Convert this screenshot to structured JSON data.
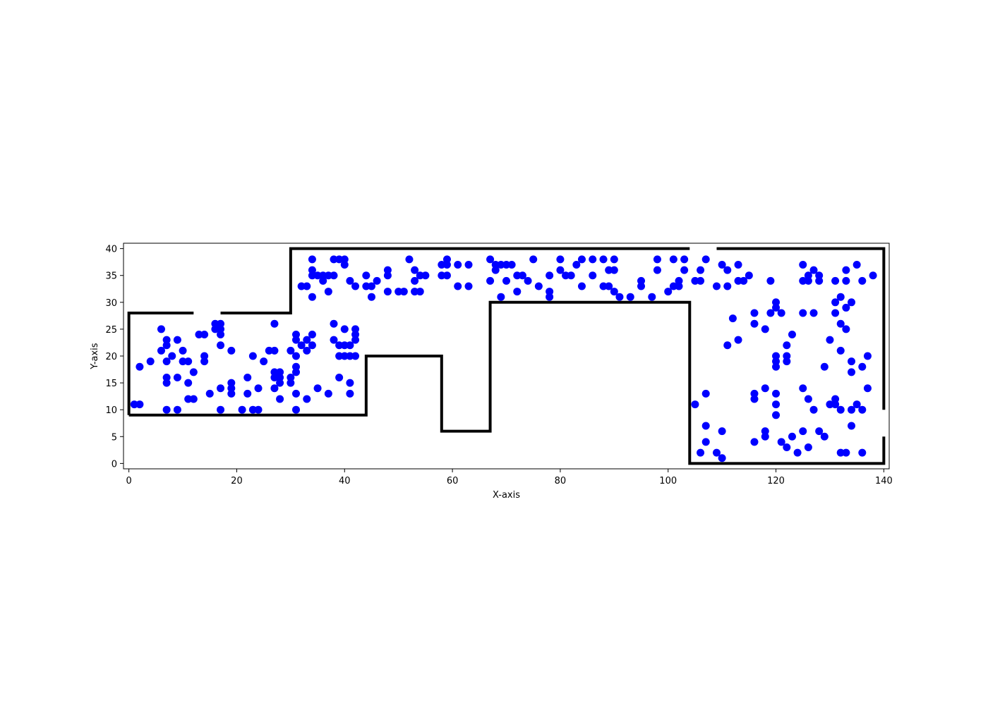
{
  "chart_data": {
    "type": "scatter",
    "title": "",
    "xlabel": "X-axis",
    "ylabel": "Y-axis",
    "xlim": [
      -1,
      141
    ],
    "ylim": [
      -1,
      41
    ],
    "xticks": [
      0,
      20,
      40,
      60,
      80,
      100,
      120,
      140
    ],
    "yticks": [
      0,
      5,
      10,
      15,
      20,
      25,
      30,
      35,
      40
    ],
    "grid": false,
    "colors": {
      "points": "#0000ff",
      "walls": "#000000",
      "axes": "#000000"
    },
    "walls": [
      [
        [
          0,
          9
        ],
        [
          0,
          28
        ],
        [
          12,
          28
        ]
      ],
      [
        [
          17,
          28
        ],
        [
          30,
          28
        ],
        [
          30,
          40
        ],
        [
          104,
          40
        ]
      ],
      [
        [
          109,
          40
        ],
        [
          140,
          40
        ],
        [
          140,
          10
        ]
      ],
      [
        [
          140,
          5
        ],
        [
          140,
          0
        ],
        [
          104,
          0
        ],
        [
          104,
          30
        ],
        [
          67,
          30
        ],
        [
          67,
          6
        ],
        [
          58,
          6
        ],
        [
          58,
          20
        ],
        [
          44,
          20
        ],
        [
          44,
          9
        ],
        [
          0,
          9
        ]
      ]
    ],
    "points": [
      [
        1,
        11
      ],
      [
        2,
        11
      ],
      [
        2,
        18
      ],
      [
        4,
        19
      ],
      [
        6,
        25
      ],
      [
        6,
        21
      ],
      [
        7,
        23
      ],
      [
        7,
        22
      ],
      [
        7,
        19
      ],
      [
        7,
        16
      ],
      [
        7,
        15
      ],
      [
        7,
        10
      ],
      [
        8,
        20
      ],
      [
        9,
        23
      ],
      [
        9,
        16
      ],
      [
        9,
        10
      ],
      [
        10,
        21
      ],
      [
        10,
        19
      ],
      [
        11,
        19
      ],
      [
        11,
        15
      ],
      [
        11,
        12
      ],
      [
        12,
        17
      ],
      [
        12,
        12
      ],
      [
        13,
        24
      ],
      [
        14,
        24
      ],
      [
        14,
        20
      ],
      [
        14,
        19
      ],
      [
        15,
        13
      ],
      [
        16,
        26
      ],
      [
        16,
        25
      ],
      [
        17,
        26
      ],
      [
        17,
        25
      ],
      [
        17,
        24
      ],
      [
        17,
        22
      ],
      [
        17,
        14
      ],
      [
        17,
        10
      ],
      [
        19,
        21
      ],
      [
        19,
        15
      ],
      [
        19,
        14
      ],
      [
        19,
        13
      ],
      [
        21,
        10
      ],
      [
        22,
        16
      ],
      [
        22,
        13
      ],
      [
        23,
        20
      ],
      [
        23,
        10
      ],
      [
        24,
        14
      ],
      [
        24,
        10
      ],
      [
        25,
        19
      ],
      [
        26,
        21
      ],
      [
        27,
        26
      ],
      [
        27,
        21
      ],
      [
        27,
        17
      ],
      [
        27,
        16
      ],
      [
        27,
        14
      ],
      [
        28,
        17
      ],
      [
        28,
        16
      ],
      [
        28,
        15
      ],
      [
        28,
        12
      ],
      [
        30,
        21
      ],
      [
        30,
        16
      ],
      [
        30,
        15
      ],
      [
        31,
        24
      ],
      [
        31,
        23
      ],
      [
        31,
        20
      ],
      [
        31,
        18
      ],
      [
        31,
        17
      ],
      [
        31,
        13
      ],
      [
        31,
        10
      ],
      [
        32,
        22
      ],
      [
        33,
        23
      ],
      [
        33,
        21
      ],
      [
        33,
        12
      ],
      [
        34,
        24
      ],
      [
        34,
        22
      ],
      [
        35,
        14
      ],
      [
        37,
        13
      ],
      [
        38,
        26
      ],
      [
        38,
        23
      ],
      [
        39,
        22
      ],
      [
        39,
        20
      ],
      [
        39,
        16
      ],
      [
        40,
        25
      ],
      [
        40,
        22
      ],
      [
        40,
        20
      ],
      [
        41,
        22
      ],
      [
        41,
        20
      ],
      [
        41,
        15
      ],
      [
        41,
        13
      ],
      [
        42,
        25
      ],
      [
        42,
        24
      ],
      [
        42,
        23
      ],
      [
        42,
        20
      ],
      [
        32,
        33
      ],
      [
        33,
        33
      ],
      [
        34,
        38
      ],
      [
        34,
        36
      ],
      [
        34,
        35
      ],
      [
        34,
        31
      ],
      [
        35,
        35
      ],
      [
        36,
        35
      ],
      [
        36,
        34
      ],
      [
        37,
        35
      ],
      [
        37,
        32
      ],
      [
        38,
        38
      ],
      [
        38,
        35
      ],
      [
        39,
        38
      ],
      [
        40,
        38
      ],
      [
        40,
        37
      ],
      [
        41,
        34
      ],
      [
        42,
        33
      ],
      [
        44,
        35
      ],
      [
        44,
        33
      ],
      [
        45,
        33
      ],
      [
        45,
        31
      ],
      [
        46,
        34
      ],
      [
        48,
        36
      ],
      [
        48,
        35
      ],
      [
        48,
        32
      ],
      [
        50,
        32
      ],
      [
        51,
        32
      ],
      [
        52,
        38
      ],
      [
        53,
        36
      ],
      [
        53,
        34
      ],
      [
        53,
        32
      ],
      [
        54,
        35
      ],
      [
        54,
        32
      ],
      [
        55,
        35
      ],
      [
        58,
        37
      ],
      [
        58,
        35
      ],
      [
        59,
        38
      ],
      [
        59,
        37
      ],
      [
        59,
        35
      ],
      [
        61,
        37
      ],
      [
        61,
        33
      ],
      [
        63,
        37
      ],
      [
        63,
        33
      ],
      [
        67,
        38
      ],
      [
        67,
        34
      ],
      [
        68,
        37
      ],
      [
        68,
        36
      ],
      [
        69,
        37
      ],
      [
        69,
        31
      ],
      [
        70,
        37
      ],
      [
        70,
        34
      ],
      [
        71,
        37
      ],
      [
        72,
        35
      ],
      [
        72,
        32
      ],
      [
        73,
        35
      ],
      [
        74,
        34
      ],
      [
        75,
        38
      ],
      [
        76,
        33
      ],
      [
        78,
        35
      ],
      [
        78,
        32
      ],
      [
        78,
        31
      ],
      [
        80,
        38
      ],
      [
        80,
        36
      ],
      [
        81,
        35
      ],
      [
        82,
        35
      ],
      [
        83,
        37
      ],
      [
        84,
        38
      ],
      [
        84,
        33
      ],
      [
        86,
        38
      ],
      [
        86,
        35
      ],
      [
        88,
        38
      ],
      [
        88,
        33
      ],
      [
        89,
        36
      ],
      [
        89,
        33
      ],
      [
        90,
        38
      ],
      [
        90,
        36
      ],
      [
        90,
        32
      ],
      [
        91,
        31
      ],
      [
        93,
        31
      ],
      [
        95,
        34
      ],
      [
        95,
        33
      ],
      [
        97,
        31
      ],
      [
        98,
        38
      ],
      [
        98,
        36
      ],
      [
        100,
        32
      ],
      [
        101,
        38
      ],
      [
        101,
        33
      ],
      [
        102,
        34
      ],
      [
        102,
        33
      ],
      [
        103,
        38
      ],
      [
        103,
        36
      ],
      [
        105,
        34
      ],
      [
        106,
        36
      ],
      [
        106,
        34
      ],
      [
        107,
        38
      ],
      [
        109,
        33
      ],
      [
        110,
        37
      ],
      [
        111,
        36
      ],
      [
        111,
        33
      ],
      [
        113,
        37
      ],
      [
        113,
        34
      ],
      [
        114,
        34
      ],
      [
        115,
        35
      ],
      [
        119,
        34
      ],
      [
        125,
        37
      ],
      [
        125,
        34
      ],
      [
        126,
        35
      ],
      [
        126,
        34
      ],
      [
        127,
        36
      ],
      [
        128,
        35
      ],
      [
        128,
        34
      ],
      [
        131,
        34
      ],
      [
        133,
        36
      ],
      [
        133,
        34
      ],
      [
        135,
        37
      ],
      [
        136,
        34
      ],
      [
        138,
        35
      ],
      [
        105,
        11
      ],
      [
        106,
        2
      ],
      [
        107,
        13
      ],
      [
        107,
        7
      ],
      [
        107,
        4
      ],
      [
        109,
        2
      ],
      [
        110,
        6
      ],
      [
        110,
        1
      ],
      [
        111,
        22
      ],
      [
        112,
        27
      ],
      [
        113,
        23
      ],
      [
        116,
        28
      ],
      [
        116,
        26
      ],
      [
        116,
        13
      ],
      [
        116,
        12
      ],
      [
        116,
        4
      ],
      [
        118,
        25
      ],
      [
        118,
        14
      ],
      [
        118,
        6
      ],
      [
        118,
        5
      ],
      [
        119,
        28
      ],
      [
        120,
        30
      ],
      [
        120,
        29
      ],
      [
        120,
        20
      ],
      [
        120,
        19
      ],
      [
        120,
        18
      ],
      [
        120,
        13
      ],
      [
        120,
        11
      ],
      [
        120,
        9
      ],
      [
        121,
        28
      ],
      [
        121,
        4
      ],
      [
        122,
        22
      ],
      [
        122,
        20
      ],
      [
        122,
        19
      ],
      [
        122,
        3
      ],
      [
        123,
        24
      ],
      [
        123,
        5
      ],
      [
        124,
        2
      ],
      [
        125,
        28
      ],
      [
        125,
        14
      ],
      [
        125,
        6
      ],
      [
        126,
        12
      ],
      [
        126,
        3
      ],
      [
        127,
        28
      ],
      [
        127,
        10
      ],
      [
        128,
        6
      ],
      [
        129,
        18
      ],
      [
        129,
        5
      ],
      [
        130,
        23
      ],
      [
        130,
        11
      ],
      [
        131,
        30
      ],
      [
        131,
        28
      ],
      [
        131,
        12
      ],
      [
        131,
        11
      ],
      [
        132,
        31
      ],
      [
        132,
        26
      ],
      [
        132,
        21
      ],
      [
        132,
        10
      ],
      [
        132,
        2
      ],
      [
        133,
        29
      ],
      [
        133,
        25
      ],
      [
        133,
        2
      ],
      [
        134,
        30
      ],
      [
        134,
        19
      ],
      [
        134,
        17
      ],
      [
        134,
        10
      ],
      [
        134,
        7
      ],
      [
        135,
        11
      ],
      [
        136,
        18
      ],
      [
        136,
        10
      ],
      [
        136,
        2
      ],
      [
        137,
        20
      ],
      [
        137,
        14
      ]
    ]
  }
}
